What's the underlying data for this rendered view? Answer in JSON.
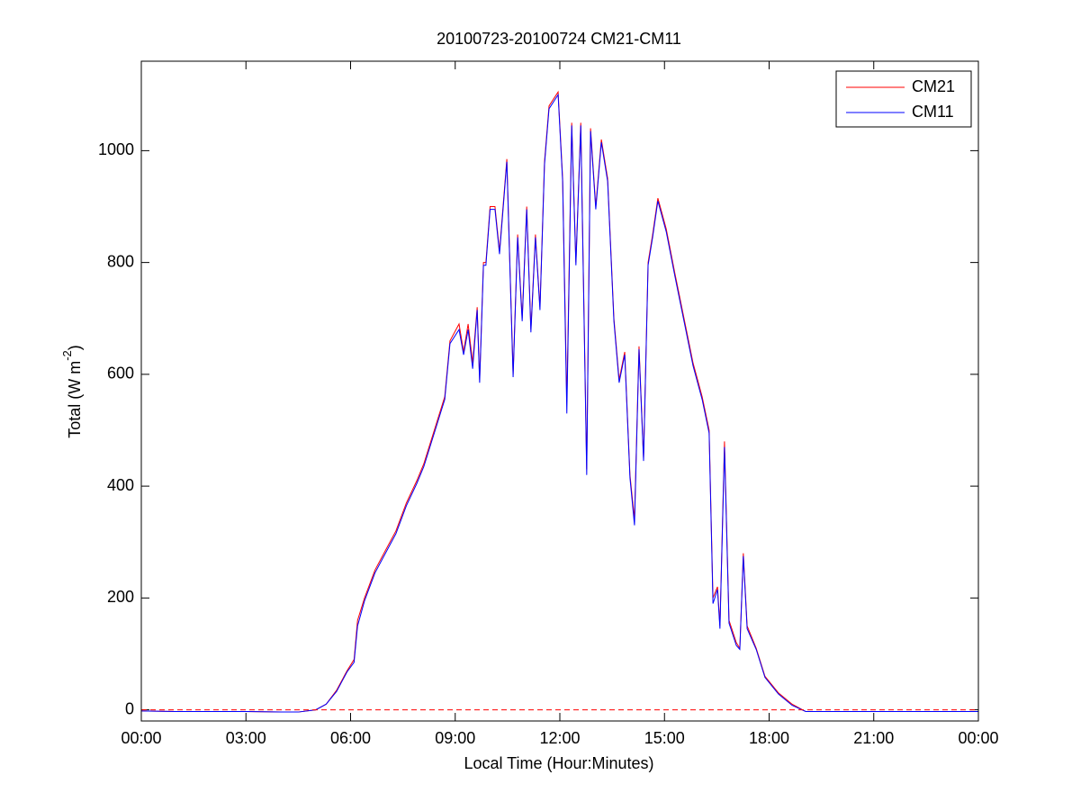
{
  "chart_data": {
    "type": "line",
    "title": "20100723-20100724 CM21-CM11",
    "xlabel": "Local Time (Hour:Minutes)",
    "ylabel": [
      "Total (W m",
      "-2",
      ")"
    ],
    "x": [
      0,
      1,
      2,
      3,
      4,
      4.5,
      5,
      5.3,
      5.6,
      5.9,
      6.1,
      6.2,
      6.4,
      6.7,
      7.0,
      7.3,
      7.6,
      7.9,
      8.1,
      8.4,
      8.7,
      8.85,
      9.11,
      9.24,
      9.37,
      9.5,
      9.63,
      9.7,
      9.81,
      9.88,
      10.0,
      10.14,
      10.27,
      10.48,
      10.66,
      10.79,
      10.92,
      11.05,
      11.17,
      11.3,
      11.43,
      11.56,
      11.69,
      11.95,
      12.08,
      12.2,
      12.34,
      12.46,
      12.6,
      12.77,
      12.88,
      13.03,
      13.19,
      13.37,
      13.55,
      13.7,
      13.86,
      14.01,
      14.14,
      14.27,
      14.4,
      14.53,
      14.66,
      14.81,
      15.05,
      15.3,
      15.56,
      15.82,
      16.08,
      16.28,
      16.39,
      16.52,
      16.59,
      16.72,
      16.85,
      17.06,
      17.16,
      17.26,
      17.37,
      17.63,
      17.88,
      18.27,
      18.66,
      19.05,
      20,
      22,
      24
    ],
    "series": [
      {
        "name": "CM21",
        "color": "#ff0000",
        "values": [
          -2,
          -3,
          -3,
          -3,
          -4,
          -4,
          0,
          10,
          35,
          70,
          90,
          160,
          200,
          250,
          285,
          320,
          370,
          410,
          440,
          500,
          560,
          660,
          690,
          640,
          690,
          620,
          720,
          590,
          800,
          800,
          900,
          900,
          820,
          985,
          600,
          850,
          700,
          900,
          680,
          850,
          720,
          980,
          1080,
          1105,
          950,
          550,
          1050,
          800,
          1050,
          430,
          1040,
          900,
          1020,
          950,
          700,
          590,
          640,
          420,
          340,
          650,
          450,
          800,
          850,
          915,
          860,
          780,
          700,
          620,
          560,
          500,
          200,
          220,
          150,
          480,
          160,
          120,
          110,
          280,
          150,
          110,
          60,
          30,
          10,
          -3,
          -3,
          -3,
          -3
        ]
      },
      {
        "name": "CM11",
        "color": "#0000ff",
        "values": [
          -2,
          -3,
          -3,
          -3,
          -4,
          -4,
          0,
          10,
          33,
          68,
          85,
          150,
          195,
          245,
          280,
          315,
          365,
          405,
          435,
          495,
          555,
          655,
          680,
          635,
          680,
          610,
          715,
          585,
          795,
          795,
          895,
          895,
          815,
          980,
          595,
          845,
          695,
          895,
          675,
          845,
          715,
          975,
          1075,
          1100,
          945,
          530,
          1045,
          795,
          1045,
          420,
          1035,
          895,
          1015,
          945,
          695,
          585,
          635,
          415,
          330,
          645,
          445,
          795,
          845,
          910,
          855,
          775,
          695,
          615,
          555,
          495,
          190,
          215,
          145,
          470,
          155,
          115,
          108,
          275,
          145,
          108,
          58,
          28,
          8,
          -3,
          -3,
          -3,
          -3
        ]
      }
    ],
    "xlim": [
      0,
      24
    ],
    "xticks": [
      {
        "value": 0,
        "label": "00:00"
      },
      {
        "value": 3,
        "label": "03:00"
      },
      {
        "value": 6,
        "label": "06:00"
      },
      {
        "value": 9,
        "label": "09:00"
      },
      {
        "value": 12,
        "label": "12:00"
      },
      {
        "value": 15,
        "label": "15:00"
      },
      {
        "value": 18,
        "label": "18:00"
      },
      {
        "value": 21,
        "label": "21:00"
      },
      {
        "value": 24,
        "label": "00:00"
      }
    ],
    "ylim": [
      -20,
      1160
    ],
    "yticks": [
      0,
      200,
      400,
      600,
      800,
      1000
    ],
    "hline": {
      "value": 0,
      "color": "#ff0000"
    },
    "legend": "upper right",
    "grid": false
  }
}
